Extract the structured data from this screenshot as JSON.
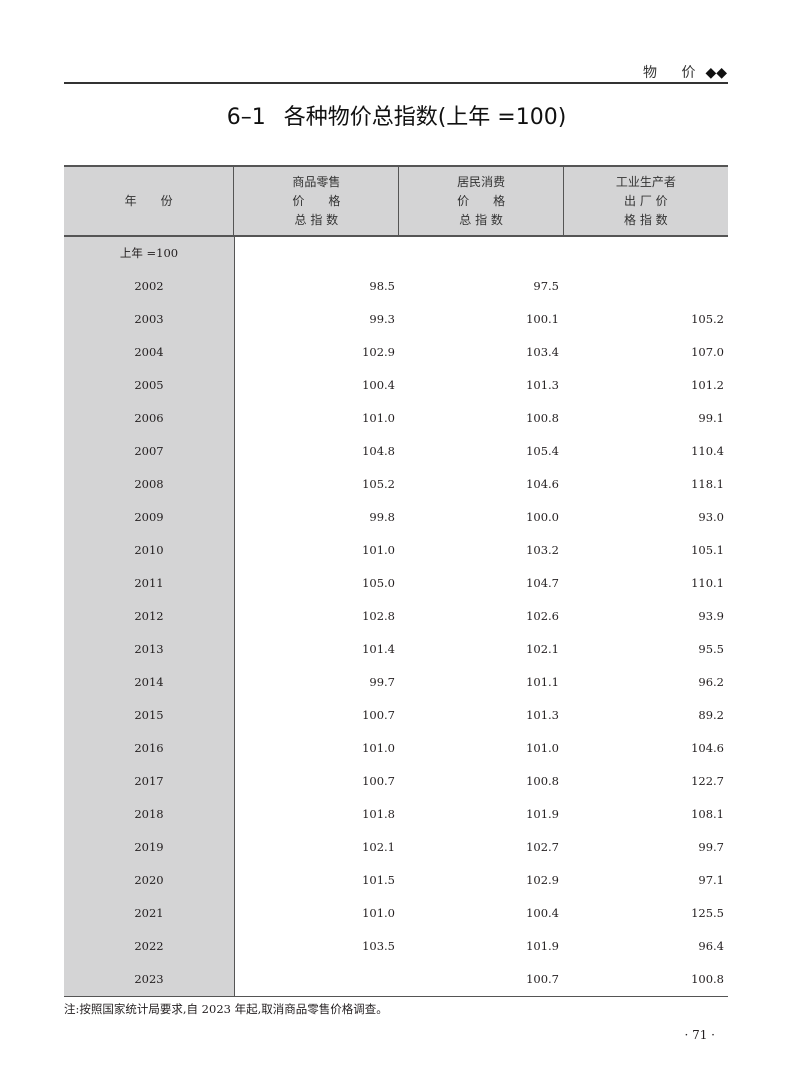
{
  "section_header": {
    "label": "物 价",
    "marker": "◆◆"
  },
  "title": {
    "number": "6–1",
    "text": "各种物价总指数(上年 =100)"
  },
  "table": {
    "headers": [
      {
        "lines": [
          "年　　份"
        ]
      },
      {
        "lines": [
          "商品零售",
          "价　　格",
          "总 指 数"
        ]
      },
      {
        "lines": [
          "居民消费",
          "价　　格",
          "总 指 数"
        ]
      },
      {
        "lines": [
          "工业生产者",
          "出 厂 价",
          "格 指 数"
        ]
      }
    ],
    "unit_row": "上年 =100",
    "rows": [
      [
        "2002",
        "98.5",
        "97.5",
        ""
      ],
      [
        "2003",
        "99.3",
        "100.1",
        "105.2"
      ],
      [
        "2004",
        "102.9",
        "103.4",
        "107.0"
      ],
      [
        "2005",
        "100.4",
        "101.3",
        "101.2"
      ],
      [
        "2006",
        "101.0",
        "100.8",
        "99.1"
      ],
      [
        "2007",
        "104.8",
        "105.4",
        "110.4"
      ],
      [
        "2008",
        "105.2",
        "104.6",
        "118.1"
      ],
      [
        "2009",
        "99.8",
        "100.0",
        "93.0"
      ],
      [
        "2010",
        "101.0",
        "103.2",
        "105.1"
      ],
      [
        "2011",
        "105.0",
        "104.7",
        "110.1"
      ],
      [
        "2012",
        "102.8",
        "102.6",
        "93.9"
      ],
      [
        "2013",
        "101.4",
        "102.1",
        "95.5"
      ],
      [
        "2014",
        "99.7",
        "101.1",
        "96.2"
      ],
      [
        "2015",
        "100.7",
        "101.3",
        "89.2"
      ],
      [
        "2016",
        "101.0",
        "101.0",
        "104.6"
      ],
      [
        "2017",
        "100.7",
        "100.8",
        "122.7"
      ],
      [
        "2018",
        "101.8",
        "101.9",
        "108.1"
      ],
      [
        "2019",
        "102.1",
        "102.7",
        "99.7"
      ],
      [
        "2020",
        "101.5",
        "102.9",
        "97.1"
      ],
      [
        "2021",
        "101.0",
        "100.4",
        "125.5"
      ],
      [
        "2022",
        "103.5",
        "101.9",
        "96.4"
      ],
      [
        "2023",
        "",
        "100.7",
        "100.8"
      ]
    ]
  },
  "note": "注:按照国家统计局要求,自 2023 年起,取消商品零售价格调查。",
  "page_number": "· 71 ·"
}
